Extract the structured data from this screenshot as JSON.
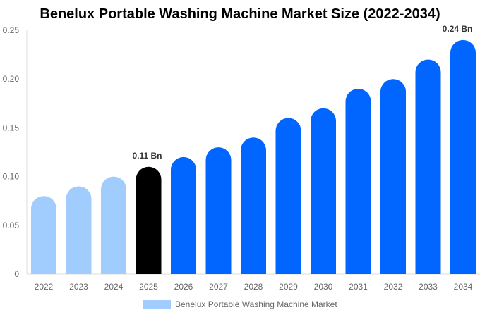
{
  "chart_data": {
    "type": "bar",
    "title": "Benelux Portable Washing Machine Market Size (2022-2034)",
    "categories": [
      "2022",
      "2023",
      "2024",
      "2025",
      "2026",
      "2027",
      "2028",
      "2029",
      "2030",
      "2031",
      "2032",
      "2033",
      "2034"
    ],
    "series": [
      {
        "name": "Benelux Portable Washing Machine Market",
        "values": [
          0.08,
          0.09,
          0.1,
          0.11,
          0.12,
          0.13,
          0.14,
          0.16,
          0.17,
          0.19,
          0.2,
          0.22,
          0.24
        ]
      }
    ],
    "ylim": [
      0,
      0.25
    ],
    "yticks": [
      "0",
      "0.05",
      "0.10",
      "0.15",
      "0.20",
      "0.25"
    ],
    "data_labels": {
      "2025": "0.11 Bn",
      "2034": "0.24 Bn"
    },
    "grid": false,
    "legend": "bottom",
    "colors": {
      "historic": "#a0cdfd",
      "current": "#000000",
      "forecast": "#0066ff"
    }
  }
}
